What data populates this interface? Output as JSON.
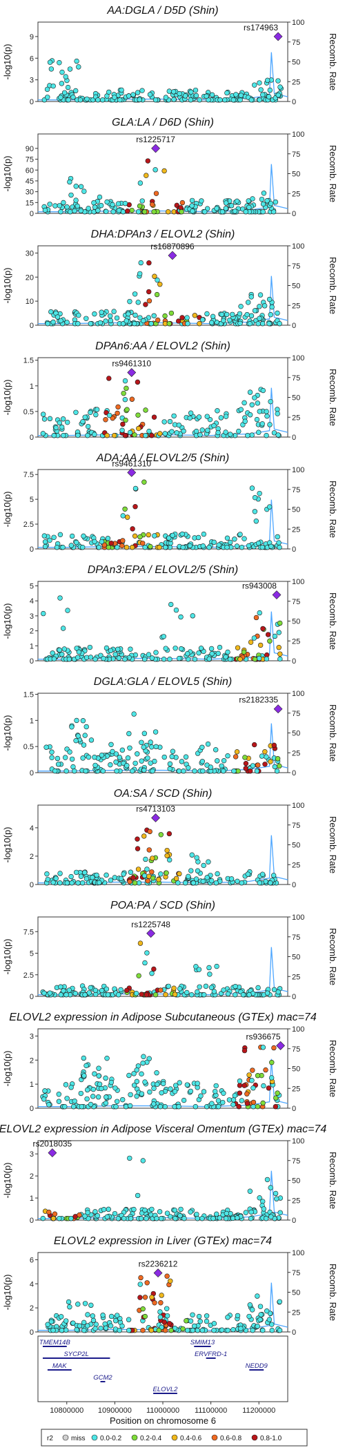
{
  "chart_data": {
    "type": "scatter",
    "figure": "regional_association_stack",
    "xlabel": "Position on chromosome 6",
    "x_ticks": [
      10800000,
      10900000,
      11000000,
      11100000,
      11200000
    ],
    "xlim": [
      10740000,
      11260000
    ],
    "ylabel_left": "-log10(p)",
    "ylabel_right": "Recomb. Rate",
    "recomb_ticks": [
      0,
      25,
      50,
      75,
      100
    ],
    "legend": {
      "title": "r2",
      "items": [
        {
          "label": "miss",
          "color": "#d0d0d0"
        },
        {
          "label": "0.0-0.2",
          "color": "#4ee6e6"
        },
        {
          "label": "0.2-0.4",
          "color": "#7fdc3a"
        },
        {
          "label": "0.4-0.6",
          "color": "#f0b81c"
        },
        {
          "label": "0.6-0.8",
          "color": "#ef6a22"
        },
        {
          "label": "0.8-1.0",
          "color": "#b8161a"
        }
      ],
      "lead_color": "#8a2be2"
    },
    "panels": [
      {
        "title": "AA:DGLA / D5D (Shin)",
        "ylim": [
          0,
          11
        ],
        "y_ticks": [
          0,
          3,
          6,
          9
        ],
        "lead_snp": "rs174963",
        "lead_x": 11240000,
        "lead_y": 9.0,
        "ld": "none",
        "seed": 3,
        "bg": 1.6,
        "peaks": [
          {
            "x": 10790000,
            "h": 5.7,
            "n": 16
          },
          {
            "x": 11215000,
            "h": 3.2,
            "n": 12
          }
        ]
      },
      {
        "title": "GLA:LA / D6D (Shin)",
        "ylim": [
          0,
          110
        ],
        "y_ticks": [
          0,
          15,
          30,
          45,
          60,
          75,
          90
        ],
        "lead_snp": "rs1225717",
        "lead_x": 10985000,
        "lead_y": 90,
        "ld": "center",
        "seed": 5,
        "bg": 18,
        "peaks": [
          {
            "x": 10975000,
            "h": 75,
            "n": 6
          },
          {
            "x": 10840000,
            "h": 55,
            "n": 8
          },
          {
            "x": 11205000,
            "h": 28,
            "n": 12
          }
        ]
      },
      {
        "title": "DHA:DPAn3 / ELOVL2 (Shin)",
        "ylim": [
          0,
          33
        ],
        "y_ticks": [
          0,
          10,
          20,
          30
        ],
        "lead_snp": "rs16870896",
        "lead_x": 11020000,
        "lead_y": 29,
        "ld": "lead",
        "seed": 7,
        "bg": 6,
        "peaks": [
          {
            "x": 10960000,
            "h": 26,
            "n": 14
          },
          {
            "x": 11195000,
            "h": 13,
            "n": 14
          }
        ]
      },
      {
        "title": "DPAn6:AA / ELOVL2 (Shin)",
        "ylim": [
          0,
          1.55
        ],
        "y_ticks": [
          0.0,
          0.5,
          1.0,
          1.5
        ],
        "lead_snp": "rs9461310",
        "lead_x": 10935000,
        "lead_y": 1.26,
        "ld": "center",
        "seed": 11,
        "bg": 0.55,
        "peaks": [
          {
            "x": 10920000,
            "h": 1.15,
            "n": 10
          },
          {
            "x": 11190000,
            "h": 1.0,
            "n": 16
          }
        ]
      },
      {
        "title": "ADA:AA / ELOVL2/5 (Shin)",
        "ylim": [
          0,
          8
        ],
        "y_ticks": [
          0.0,
          2.5,
          5.0,
          7.5
        ],
        "lead_snp": "rs9461310",
        "lead_x": 10935000,
        "lead_y": 7.7,
        "ld": "center",
        "seed": 13,
        "bg": 1.5,
        "peaks": [
          {
            "x": 10935000,
            "h": 7.0,
            "n": 8
          },
          {
            "x": 11205000,
            "h": 6.8,
            "n": 8
          }
        ]
      },
      {
        "title": "DPAn3:EPA / ELOVL2/5 (Shin)",
        "ylim": [
          0,
          5.3
        ],
        "y_ticks": [
          0,
          1,
          2,
          3,
          4,
          5
        ],
        "lead_snp": "rs943008",
        "lead_x": 11237000,
        "lead_y": 4.4,
        "ld": "right",
        "seed": 17,
        "bg": 0.9,
        "peaks": [
          {
            "x": 10785000,
            "h": 4.2,
            "n": 4
          },
          {
            "x": 11030000,
            "h": 4.2,
            "n": 6
          },
          {
            "x": 11210000,
            "h": 3.4,
            "n": 14
          }
        ]
      },
      {
        "title": "DGLA:GLA / ELOVL5 (Shin)",
        "ylim": [
          0,
          1.52
        ],
        "y_ticks": [
          0.0,
          0.5,
          1.0,
          1.5
        ],
        "lead_snp": "rs2182335",
        "lead_x": 11240000,
        "lead_y": 1.22,
        "ld": "right",
        "seed": 19,
        "bg": 0.55,
        "peaks": [
          {
            "x": 10840000,
            "h": 1.0,
            "n": 18
          },
          {
            "x": 10960000,
            "h": 1.2,
            "n": 10
          }
        ]
      },
      {
        "title": "OA:SA / SCD (Shin)",
        "ylim": [
          0,
          5.6
        ],
        "y_ticks": [
          0,
          2,
          4
        ],
        "lead_snp": "rs4713103",
        "lead_x": 10985000,
        "lead_y": 4.7,
        "ld": "center",
        "seed": 23,
        "bg": 0.9,
        "peaks": [
          {
            "x": 10980000,
            "h": 3.9,
            "n": 18
          },
          {
            "x": 11060000,
            "h": 2.5,
            "n": 8
          }
        ]
      },
      {
        "title": "POA:PA / SCD (Shin)",
        "ylim": [
          0,
          9.2
        ],
        "y_ticks": [
          0.0,
          2.5,
          5.0,
          7.5
        ],
        "lead_snp": "rs1225748",
        "lead_x": 10975000,
        "lead_y": 7.3,
        "ld": "lead",
        "seed": 29,
        "bg": 1.2,
        "peaks": [
          {
            "x": 10970000,
            "h": 6.5,
            "n": 6
          },
          {
            "x": 11080000,
            "h": 3.8,
            "n": 8
          }
        ]
      },
      {
        "title": "ELOVL2 expression in Adipose Subcutaneous (GTEx) mac=74",
        "ylim": [
          0,
          3.3
        ],
        "y_ticks": [
          0,
          1,
          2,
          3
        ],
        "lead_snp": "rs936675",
        "lead_x": 11245000,
        "lead_y": 2.6,
        "ld": "right",
        "seed": 31,
        "bg": 1.2,
        "peaks": [
          {
            "x": 10860000,
            "h": 2.1,
            "n": 20
          },
          {
            "x": 10960000,
            "h": 2.2,
            "n": 18
          },
          {
            "x": 11205000,
            "h": 2.7,
            "n": 14
          }
        ]
      },
      {
        "title": "ELOVL2 expression in Adipose Visceral Omentum (GTEx) mac=74",
        "ylim": [
          0,
          3.6
        ],
        "y_ticks": [
          0,
          1,
          2,
          3
        ],
        "lead_snp": "rs2018035",
        "lead_x": 10770000,
        "lead_y": 3.05,
        "ld": "lead",
        "seed": 37,
        "bg": 0.5,
        "peaks": [
          {
            "x": 10955000,
            "h": 2.9,
            "n": 3
          },
          {
            "x": 11215000,
            "h": 1.9,
            "n": 10
          }
        ]
      },
      {
        "title": "ELOVL2 expression in Liver (GTEx) mac=74",
        "ylim": [
          0,
          6.6
        ],
        "y_ticks": [
          0,
          2,
          4,
          6
        ],
        "lead_snp": "rs2236212",
        "lead_x": 10990000,
        "lead_y": 4.9,
        "ld": "center",
        "seed": 41,
        "bg": 1.5,
        "peaks": [
          {
            "x": 10985000,
            "h": 4.7,
            "n": 22
          },
          {
            "x": 10820000,
            "h": 2.5,
            "n": 10
          },
          {
            "x": 11210000,
            "h": 3.1,
            "n": 14
          }
        ]
      }
    ],
    "genes": [
      {
        "name": "TMEM14B",
        "start": 10750000,
        "end": 10800000,
        "row": 0
      },
      {
        "name": "SMIM13",
        "start": 11065000,
        "end": 11100000,
        "row": 0
      },
      {
        "name": "SYCP2L",
        "start": 10750000,
        "end": 10890000,
        "row": 1
      },
      {
        "name": "ERVFRD-1",
        "start": 11090000,
        "end": 11110000,
        "row": 1
      },
      {
        "name": "MAK",
        "start": 10760000,
        "end": 10810000,
        "row": 2
      },
      {
        "name": "NEDD9",
        "start": 11180000,
        "end": 11210000,
        "row": 2
      },
      {
        "name": "GCM2",
        "start": 10870000,
        "end": 10880000,
        "row": 3
      },
      {
        "name": "ELOVL2",
        "start": 10980000,
        "end": 11030000,
        "row": 4
      }
    ]
  }
}
